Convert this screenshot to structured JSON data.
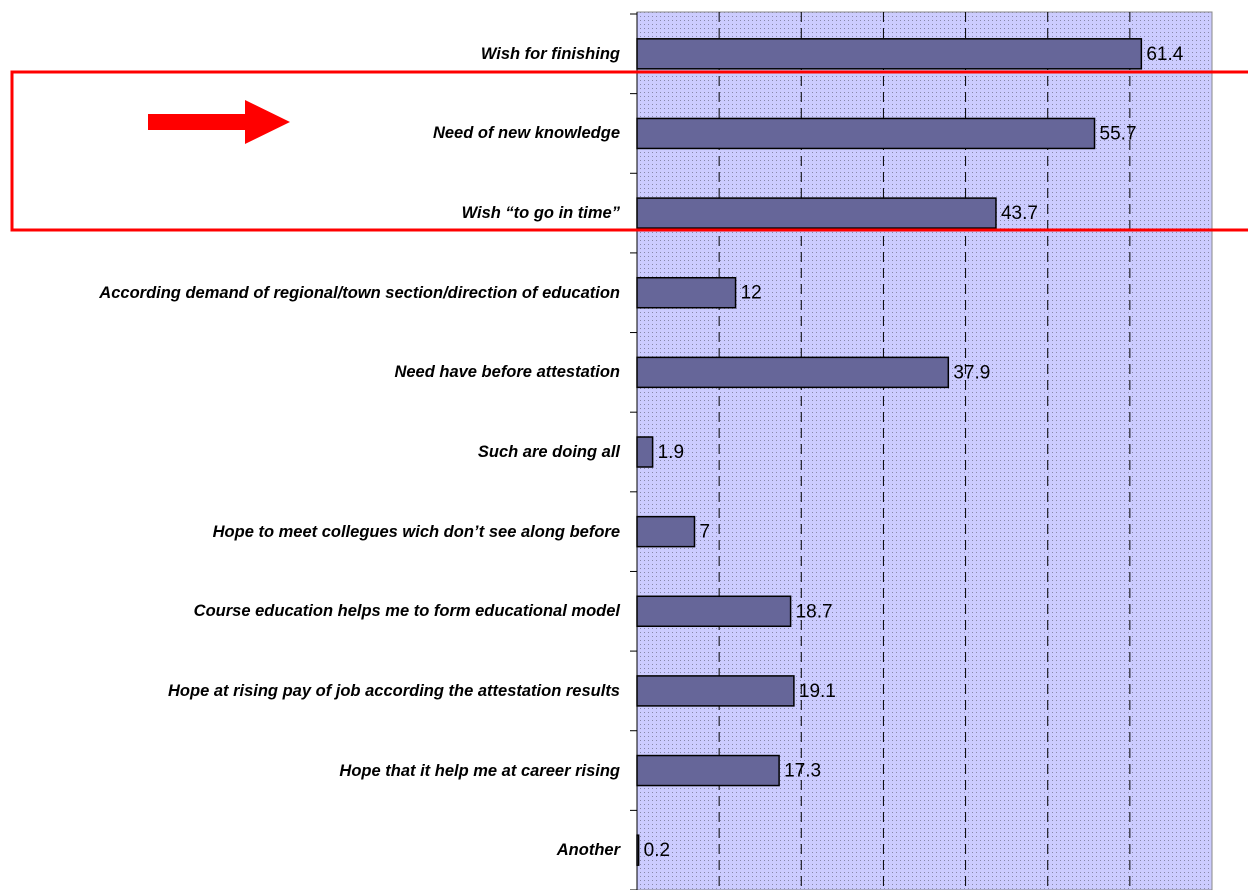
{
  "chart_data": {
    "type": "barh",
    "categories": [
      "Wish for finishing",
      "Need of new knowledge",
      "Wish “to go in time”",
      "According demand of regional/town section/direction of education",
      "Need have before attestation",
      "Such are doing all",
      "Hope to meet collegues wich don’t see along before",
      "Course education helps me to form educational model",
      "Hope at rising pay of job according the attestation results",
      "Hope that it help me at career rising",
      "Another"
    ],
    "values": [
      61.4,
      55.7,
      43.7,
      12,
      37.9,
      1.9,
      7,
      18.7,
      19.1,
      17.3,
      0.2
    ],
    "color": "#666699",
    "xlim": [
      0,
      70
    ],
    "xticks": [
      0,
      10,
      20,
      30,
      40,
      50,
      60,
      70
    ],
    "grid": true
  }
}
